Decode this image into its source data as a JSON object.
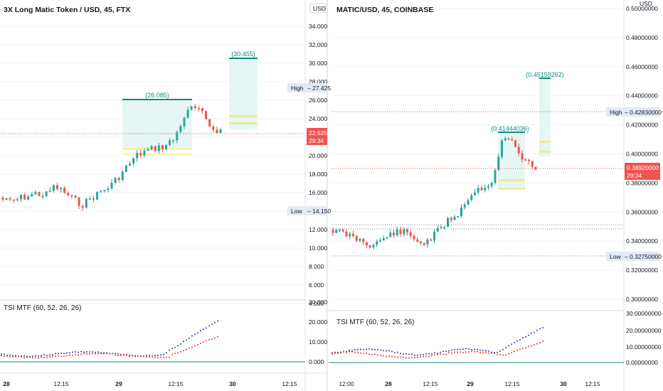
{
  "left_panel": {
    "title": "3X Long Matic Token / USD, 45, FTX",
    "currency_button": "USD",
    "price_axis": [
      "34.000",
      "32.000",
      "30.000",
      "28.000",
      "26.000",
      "24.000",
      "22.000",
      "20.000",
      "18.000",
      "16.000",
      "14.000",
      "12.000",
      "10.000",
      "8.000",
      "6.000",
      "4.000"
    ],
    "high_label": "High",
    "high_value": "27.425",
    "low_label": "Low",
    "low_value": "14.150",
    "last_price": "22.525",
    "countdown": "29:34",
    "target_labels": [
      "(26.085)",
      "(30.455)"
    ],
    "indicator_title": "TSI MTF (60, 52, 26, 26)",
    "indicator_axis": [
      "30.000",
      "20.000",
      "10.000",
      "0.000"
    ],
    "time_axis": [
      "28",
      "12:15",
      "29",
      "12:15",
      "30",
      "12:15"
    ]
  },
  "right_panel": {
    "title": "MATIC/USD, 45, COINBASE",
    "currency_label": "USD",
    "price_axis": [
      "0.50000000",
      "0.48000000",
      "0.46000000",
      "0.44000000",
      "0.42000000",
      "0.40000000",
      "0.38000000",
      "0.36000000",
      "0.34000000",
      "0.32000000",
      "0.30000000"
    ],
    "high_label": "High",
    "high_value": "0.42830000",
    "low_label": "Low",
    "low_value": "0.32750000",
    "last_price": "0.38920000",
    "countdown": "29:34",
    "target_labels": [
      "(0.41444036)",
      "(0.45159262)"
    ],
    "indicator_title": "TSI MTF (60, 52, 26, 26)",
    "indicator_axis": [
      "30.00000000",
      "20.00000000",
      "10.00000000",
      "0.00000000"
    ],
    "time_axis": [
      "12:00",
      "28",
      "12:15",
      "29",
      "12:15",
      "30",
      "12:15"
    ]
  },
  "colors": {
    "up": "#26a69a",
    "down": "#ef5350",
    "axis_text": "#131722",
    "grid": "#f0f3fa",
    "zone": "#e6f6f4",
    "fib": "#f5e04a",
    "tsi_blue": "#2a3f8f",
    "tsi_red": "#e53935",
    "label_bg": "#e3eaf5"
  }
}
